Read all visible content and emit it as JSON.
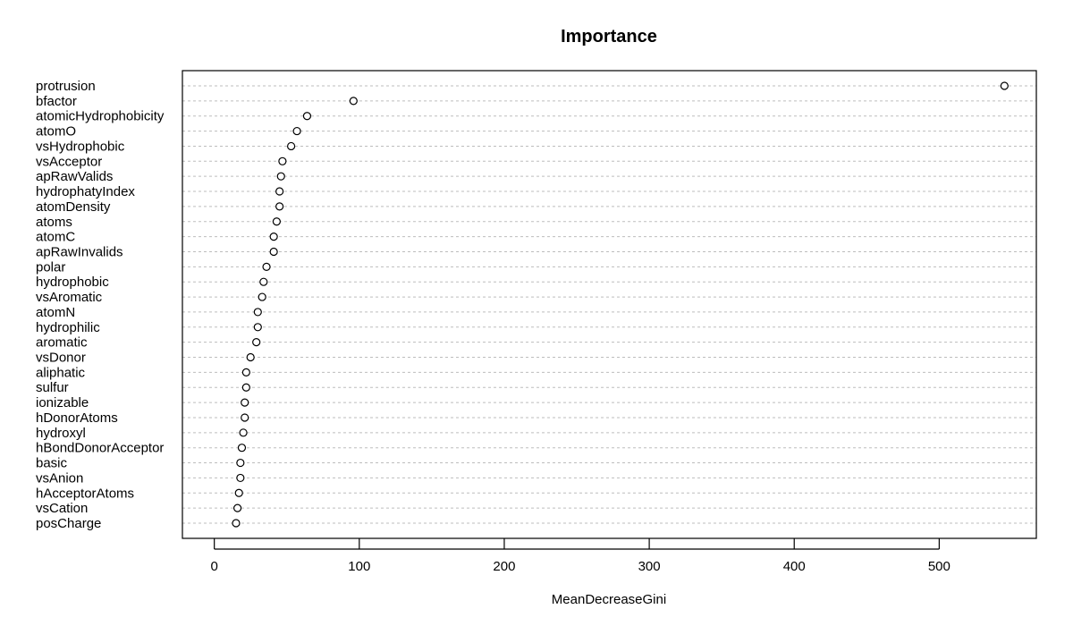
{
  "chart_data": {
    "type": "scatter",
    "title": "Importance",
    "xlabel": "MeanDecreaseGini",
    "ylabel": "",
    "xlim": [
      -22,
      567
    ],
    "xticks": [
      0,
      100,
      200,
      300,
      400,
      500
    ],
    "grid": true,
    "categories": [
      "protrusion",
      "bfactor",
      "atomicHydrophobicity",
      "atomO",
      "vsHydrophobic",
      "vsAcceptor",
      "apRawValids",
      "hydrophatyIndex",
      "atomDensity",
      "atoms",
      "atomC",
      "apRawInvalids",
      "polar",
      "hydrophobic",
      "vsAromatic",
      "atomN",
      "hydrophilic",
      "aromatic",
      "vsDonor",
      "aliphatic",
      "sulfur",
      "ionizable",
      "hDonorAtoms",
      "hydroxyl",
      "hBondDonorAcceptor",
      "basic",
      "vsAnion",
      "hAcceptorAtoms",
      "vsCation",
      "posCharge"
    ],
    "values": [
      545,
      96,
      64,
      57,
      53,
      47,
      46,
      45,
      45,
      43,
      41,
      41,
      36,
      34,
      33,
      30,
      30,
      29,
      25,
      22,
      22,
      21,
      21,
      20,
      19,
      18,
      18,
      17,
      16,
      15
    ]
  }
}
